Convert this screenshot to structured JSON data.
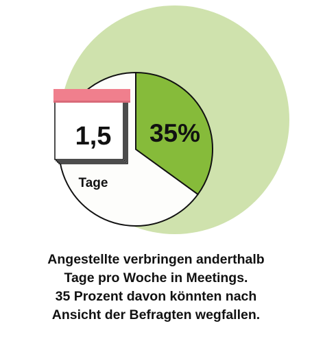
{
  "chart_data": {
    "type": "pie",
    "slices": [
      {
        "label": "35%",
        "value": 35
      },
      {
        "label": "",
        "value": 65
      }
    ],
    "annotation": {
      "value": "1,5",
      "unit": "Tage"
    }
  },
  "caption": {
    "lines": [
      "Angestellte verbringen anderthalb",
      "Tage pro Woche in Meetings.",
      "35 Prozent davon könnten nach",
      "Ansicht der Befragten wegfallen."
    ]
  },
  "colors": {
    "outer_disc": "#cfe2ad",
    "highlight_slice": "#86bb3a",
    "remainder_slice": "#fdfdfb",
    "outline": "#111111",
    "calendar_header": "#f07f8d"
  },
  "icons": {
    "calendar": "calendar-icon"
  }
}
